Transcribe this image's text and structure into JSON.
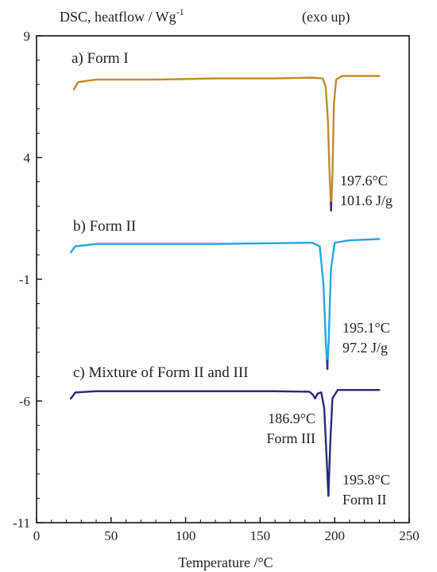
{
  "header": {
    "title": "DSC, heatflow / Wg",
    "title_sup": "-1",
    "note": "(exo up)"
  },
  "chart_data": {
    "type": "line",
    "title": "DSC, heatflow / Wg-1 (exo up)",
    "xlabel": "Temperature /°C",
    "ylabel": "",
    "xlim": [
      0,
      250
    ],
    "ylim": [
      -11,
      9
    ],
    "xticks": [
      0,
      50,
      100,
      150,
      200,
      250
    ],
    "yticks": [
      9,
      4,
      -1,
      -6,
      -11
    ],
    "grid": false,
    "series": [
      {
        "name": "a) Form I",
        "color": "#c08a2e",
        "tip_color": "#3a2b8c",
        "points": [
          [
            25,
            6.8
          ],
          [
            28,
            7.1
          ],
          [
            40,
            7.2
          ],
          [
            80,
            7.2
          ],
          [
            120,
            7.25
          ],
          [
            160,
            7.25
          ],
          [
            185,
            7.28
          ],
          [
            192,
            7.25
          ],
          [
            194,
            6.9
          ],
          [
            195.5,
            5.5
          ],
          [
            196.5,
            3.5
          ],
          [
            197.6,
            1.8
          ],
          [
            198.6,
            3.5
          ],
          [
            199.5,
            6.2
          ],
          [
            201,
            7.2
          ],
          [
            205,
            7.35
          ],
          [
            230,
            7.35
          ]
        ]
      },
      {
        "name": "b) Form II",
        "color": "#29a4e0",
        "tip_color": "#3a2b8c",
        "points": [
          [
            23,
            0.1
          ],
          [
            26,
            0.35
          ],
          [
            40,
            0.45
          ],
          [
            80,
            0.45
          ],
          [
            120,
            0.45
          ],
          [
            160,
            0.48
          ],
          [
            185,
            0.5
          ],
          [
            190,
            0.35
          ],
          [
            192.5,
            -1.2
          ],
          [
            194,
            -3.5
          ],
          [
            195.1,
            -4.7
          ],
          [
            196,
            -3.5
          ],
          [
            197.5,
            -0.6
          ],
          [
            200,
            0.5
          ],
          [
            210,
            0.6
          ],
          [
            230,
            0.65
          ]
        ]
      },
      {
        "name": "c) Mixture of Form II and III",
        "color": "#2b2a7a",
        "tip_color": "#2b2a7a",
        "points": [
          [
            23,
            -5.9
          ],
          [
            26,
            -5.65
          ],
          [
            40,
            -5.6
          ],
          [
            80,
            -5.6
          ],
          [
            120,
            -5.6
          ],
          [
            160,
            -5.6
          ],
          [
            183,
            -5.62
          ],
          [
            185.5,
            -5.75
          ],
          [
            186.9,
            -5.9
          ],
          [
            188.5,
            -5.7
          ],
          [
            191,
            -5.65
          ],
          [
            193,
            -6.3
          ],
          [
            194.5,
            -8.2
          ],
          [
            195.8,
            -9.9
          ],
          [
            197,
            -7.8
          ],
          [
            198.5,
            -5.9
          ],
          [
            202,
            -5.55
          ],
          [
            215,
            -5.55
          ],
          [
            230,
            -5.55
          ]
        ]
      }
    ],
    "annotations": [
      {
        "lines": [
          "197.6°C",
          "101.6 J/g"
        ]
      },
      {
        "lines": [
          "195.1°C",
          "97.2 J/g"
        ]
      },
      {
        "lines": [
          "186.9°C",
          "Form III"
        ]
      },
      {
        "lines": [
          "195.8°C",
          "Form II"
        ]
      }
    ]
  }
}
